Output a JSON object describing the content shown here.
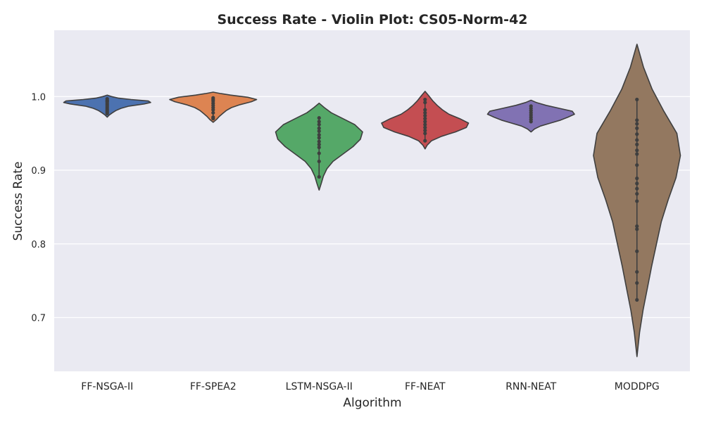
{
  "chart_data": {
    "type": "violin",
    "title": "Success Rate - Violin Plot: CS05-Norm-42",
    "xlabel": "Algorithm",
    "ylabel": "Success Rate",
    "ylim": [
      0.627,
      1.09
    ],
    "yticks": [
      0.7,
      0.8,
      0.9,
      1.0
    ],
    "ytick_labels": [
      "0.7",
      "0.8",
      "0.9",
      "1.0"
    ],
    "grid": true,
    "categories": [
      "FF-NSGA-II",
      "FF-SPEA2",
      "LSTM-NSGA-II",
      "FF-NEAT",
      "RNN-NEAT",
      "MODDPG"
    ],
    "series": [
      {
        "name": "FF-NSGA-II",
        "color": "#4C72B0",
        "points": [
          0.997,
          0.995,
          0.994,
          0.993,
          0.991,
          0.989,
          0.987,
          0.985,
          0.983,
          0.981,
          0.979,
          0.977
        ],
        "violin_range": [
          0.972,
          1.002
        ],
        "density": [
          [
            0.972,
            0.0
          ],
          [
            0.975,
            0.05
          ],
          [
            0.978,
            0.12
          ],
          [
            0.981,
            0.2
          ],
          [
            0.984,
            0.32
          ],
          [
            0.987,
            0.5
          ],
          [
            0.99,
            0.85
          ],
          [
            0.992,
            1.0
          ],
          [
            0.994,
            0.95
          ],
          [
            0.996,
            0.55
          ],
          [
            0.998,
            0.25
          ],
          [
            1.0,
            0.1
          ],
          [
            1.002,
            0.0
          ]
        ]
      },
      {
        "name": "FF-SPEA2",
        "color": "#DD8452",
        "points": [
          0.998,
          0.996,
          0.994,
          0.991,
          0.988,
          0.985,
          0.982,
          0.978,
          0.972,
          0.97
        ],
        "violin_range": [
          0.965,
          1.006
        ],
        "density": [
          [
            0.965,
            0.0
          ],
          [
            0.969,
            0.08
          ],
          [
            0.973,
            0.14
          ],
          [
            0.977,
            0.22
          ],
          [
            0.981,
            0.3
          ],
          [
            0.985,
            0.42
          ],
          [
            0.989,
            0.62
          ],
          [
            0.993,
            0.88
          ],
          [
            0.996,
            1.0
          ],
          [
            0.999,
            0.8
          ],
          [
            1.002,
            0.4
          ],
          [
            1.004,
            0.18
          ],
          [
            1.006,
            0.0
          ]
        ]
      },
      {
        "name": "LSTM-NSGA-II",
        "color": "#55A868",
        "points": [
          0.971,
          0.966,
          0.962,
          0.957,
          0.953,
          0.948,
          0.944,
          0.939,
          0.935,
          0.931,
          0.923,
          0.912,
          0.891
        ],
        "violin_range": [
          0.873,
          0.991
        ],
        "density": [
          [
            0.873,
            0.0
          ],
          [
            0.882,
            0.05
          ],
          [
            0.892,
            0.1
          ],
          [
            0.902,
            0.18
          ],
          [
            0.912,
            0.32
          ],
          [
            0.922,
            0.55
          ],
          [
            0.932,
            0.78
          ],
          [
            0.942,
            0.95
          ],
          [
            0.952,
            1.0
          ],
          [
            0.962,
            0.82
          ],
          [
            0.97,
            0.55
          ],
          [
            0.978,
            0.28
          ],
          [
            0.985,
            0.12
          ],
          [
            0.991,
            0.0
          ]
        ]
      },
      {
        "name": "FF-NEAT",
        "color": "#C44E52",
        "points": [
          0.996,
          0.992,
          0.982,
          0.978,
          0.974,
          0.97,
          0.966,
          0.962,
          0.958,
          0.954,
          0.95,
          0.94
        ],
        "violin_range": [
          0.929,
          1.007
        ],
        "density": [
          [
            0.929,
            0.0
          ],
          [
            0.934,
            0.05
          ],
          [
            0.94,
            0.15
          ],
          [
            0.946,
            0.38
          ],
          [
            0.952,
            0.7
          ],
          [
            0.958,
            0.95
          ],
          [
            0.964,
            1.0
          ],
          [
            0.97,
            0.8
          ],
          [
            0.976,
            0.55
          ],
          [
            0.982,
            0.4
          ],
          [
            0.988,
            0.28
          ],
          [
            0.994,
            0.18
          ],
          [
            1.0,
            0.1
          ],
          [
            1.007,
            0.0
          ]
        ]
      },
      {
        "name": "RNN-NEAT",
        "color": "#8172B3",
        "points": [
          0.987,
          0.984,
          0.981,
          0.978,
          0.975,
          0.972,
          0.969,
          0.966
        ],
        "violin_range": [
          0.952,
          0.995
        ],
        "density": [
          [
            0.952,
            0.0
          ],
          [
            0.956,
            0.08
          ],
          [
            0.96,
            0.22
          ],
          [
            0.964,
            0.45
          ],
          [
            0.968,
            0.68
          ],
          [
            0.972,
            0.85
          ],
          [
            0.976,
            1.0
          ],
          [
            0.98,
            0.95
          ],
          [
            0.984,
            0.65
          ],
          [
            0.988,
            0.35
          ],
          [
            0.992,
            0.12
          ],
          [
            0.995,
            0.0
          ]
        ]
      },
      {
        "name": "MODDPG",
        "color": "#937860",
        "points": [
          0.996,
          0.968,
          0.963,
          0.957,
          0.949,
          0.941,
          0.935,
          0.927,
          0.922,
          0.907,
          0.889,
          0.882,
          0.875,
          0.868,
          0.858,
          0.824,
          0.82,
          0.79,
          0.762,
          0.747,
          0.724
        ],
        "violin_range": [
          0.647,
          1.071
        ],
        "density": [
          [
            0.647,
            0.0
          ],
          [
            0.68,
            0.06
          ],
          [
            0.71,
            0.14
          ],
          [
            0.74,
            0.24
          ],
          [
            0.77,
            0.34
          ],
          [
            0.8,
            0.45
          ],
          [
            0.83,
            0.56
          ],
          [
            0.86,
            0.72
          ],
          [
            0.89,
            0.9
          ],
          [
            0.92,
            1.0
          ],
          [
            0.95,
            0.92
          ],
          [
            0.98,
            0.62
          ],
          [
            1.01,
            0.35
          ],
          [
            1.04,
            0.15
          ],
          [
            1.071,
            0.0
          ]
        ]
      }
    ]
  }
}
